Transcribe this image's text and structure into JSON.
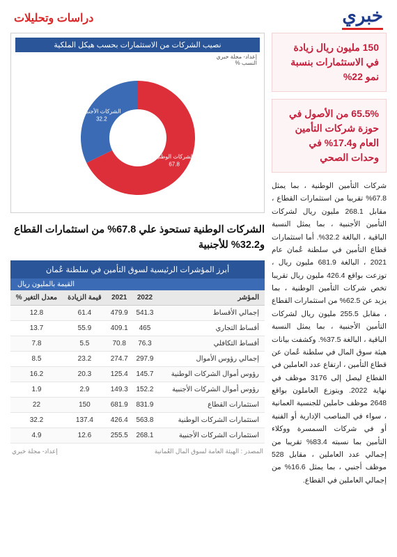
{
  "header": {
    "logo": "خبري",
    "section": "دراسات وتحليلات"
  },
  "highlight1": "150 مليون ريال زيادة في الاستثمارات بنسبة نمو 22%",
  "highlight2": "65.5% من الأصول في حوزة شركات التأمين العام و17.4% في وحدات الصحي",
  "body": "شركات التأمين الوطنية ، بما يمثل 67.8% تقريبا من استثمارات القطاع ، مقابل 268.1 مليون ريال لشركات التأمين الأجنبية ، بما يمثل النسبة الباقية ، البالغة 32.2%. أما استثمارات قطاع التأمين في سلطنة عُمان عام 2021 ، البالغة 681.9 مليون ريال ، توزعت بواقع 426.4 مليون ريال تقريبا تخص شركات التأمين الوطنية ، بما يزيد عن 62.5% من استثمارات القطاع ، مقابل 255.5 مليون ريال لشركات التأمين الأجنبية ، بما يمثل النسبة الباقية ، البالغة 37.5%. وكشفت بيانات هيئة سوق المال في سلطنة عُمان عن قطاع التأمين ، ارتفاع عدد العاملين في القطاع ليصل إلى 3176 موظف في نهاية 2022. ويتوزع العاملون بواقع 2648 موظف حاملين للجنسية العمانية ، سواء في المناصب الإدارية أو الفنية أو في شركات السمسرة ووكلاء التأمين بما نسبته 83.4% تقريبا من إجمالي عدد العاملين ، مقابل 528 موظف أجنبي ، بما يمثل 16.6% من إجمالي العاملين في القطاع.",
  "chart": {
    "title": "نصيب الشركات من الاستثمارات بحسب هيكل الملكية",
    "source_label": "إعداد- مجلة خبري",
    "axis_label": "النسب %",
    "type": "donut",
    "background_color": "#ffffff",
    "inner_radius_ratio": 0.5,
    "slices": [
      {
        "label": "الشركات الوطنية",
        "value": 67.8,
        "color": "#dc2f3a",
        "label_color": "#ffffff"
      },
      {
        "label": "الشركات الأجنبية",
        "value": 32.2,
        "color": "#3b6bb5",
        "label_color": "#ffffff"
      }
    ]
  },
  "mid_headline": "الشركات الوطنية تستحوذ علي 67.8% من استثمارات القطاع و32.2% للأجنبية",
  "table": {
    "title": "أبرز المؤشرات الرئيسية لسوق التأمين في سلطنة عُمان",
    "subtitle": "القيمة بالمليون ريال",
    "columns": [
      "المؤشر",
      "2022",
      "2021",
      "قيمة الزيادة",
      "معدل التغير %"
    ],
    "col_align": [
      "right",
      "center",
      "center",
      "center",
      "center"
    ],
    "rows": [
      [
        "إجمالي الأقساط",
        "541.3",
        "479.9",
        "61.4",
        "12.8"
      ],
      [
        "أقساط التجاري",
        "465",
        "409.1",
        "55.9",
        "13.7"
      ],
      [
        "أقساط التكافلي",
        "76.3",
        "70.8",
        "5.5",
        "7.8"
      ],
      [
        "إجمالي رؤوس الأموال",
        "297.9",
        "274.7",
        "23.2",
        "8.5"
      ],
      [
        "رؤوس أموال الشركات الوطنية",
        "145.7",
        "125.4",
        "20.3",
        "16.2"
      ],
      [
        "رؤوس أموال الشركات الأجنبية",
        "152.2",
        "149.3",
        "2.9",
        "1.9"
      ],
      [
        "استثمارات القطاع",
        "831.9",
        "681.9",
        "150",
        "22"
      ],
      [
        "استثمارات الشركات الوطنية",
        "563.8",
        "426.4",
        "137.4",
        "32.2"
      ],
      [
        "استثمارات الشركات الأجنبية",
        "268.1",
        "255.5",
        "12.6",
        "4.9"
      ]
    ],
    "header_bg": "#e8e8e8",
    "row_border": "#e5e5e5"
  },
  "footer": {
    "source": "المصدر : الهيئة العامة لسوق المال العُمانية",
    "credit": "إعداد- مجلة خبري"
  }
}
